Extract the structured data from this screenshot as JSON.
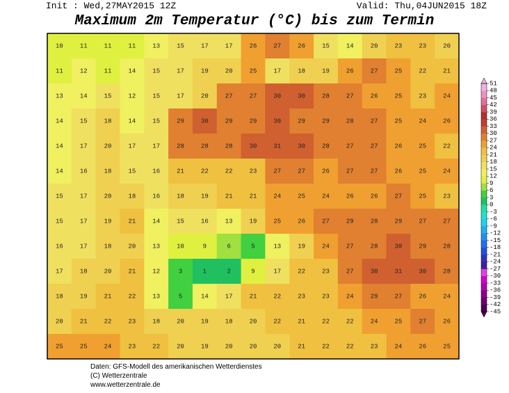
{
  "header": {
    "init": "Init : Wed,27MAY2015 12Z",
    "valid": "Valid: Thu,04JUN2015 18Z",
    "title": "Maximum 2m Temperatur (°C) bis zum Termin"
  },
  "map": {
    "values": [
      [
        10,
        11,
        11,
        11,
        13,
        15,
        17,
        17,
        26,
        27,
        26,
        15,
        14,
        20,
        23,
        23,
        20
      ],
      [
        11,
        12,
        11,
        14,
        15,
        17,
        19,
        20,
        25,
        17,
        18,
        19,
        26,
        27,
        25,
        22,
        21
      ],
      [
        13,
        14,
        15,
        12,
        15,
        17,
        20,
        27,
        27,
        30,
        30,
        28,
        27,
        26,
        25,
        23,
        24
      ],
      [
        14,
        15,
        18,
        14,
        15,
        29,
        30,
        29,
        29,
        30,
        29,
        29,
        28,
        27,
        25,
        24,
        26
      ],
      [
        14,
        17,
        20,
        17,
        17,
        28,
        28,
        28,
        30,
        31,
        30,
        28,
        27,
        27,
        26,
        25,
        22
      ],
      [
        14,
        16,
        18,
        15,
        16,
        21,
        22,
        22,
        23,
        27,
        27,
        26,
        27,
        27,
        26,
        25,
        24
      ],
      [
        15,
        17,
        20,
        18,
        16,
        18,
        19,
        21,
        21,
        24,
        25,
        24,
        26,
        26,
        27,
        25,
        23
      ],
      [
        15,
        17,
        19,
        21,
        14,
        15,
        16,
        13,
        19,
        25,
        26,
        27,
        29,
        28,
        29,
        27,
        27
      ],
      [
        16,
        17,
        18,
        20,
        13,
        10,
        9,
        6,
        5,
        13,
        19,
        24,
        27,
        28,
        30,
        29,
        28
      ],
      [
        17,
        18,
        20,
        21,
        12,
        3,
        1,
        2,
        9,
        17,
        22,
        23,
        27,
        30,
        31,
        30,
        28
      ],
      [
        18,
        19,
        21,
        22,
        13,
        5,
        14,
        17,
        21,
        22,
        23,
        23,
        24,
        29,
        27,
        26,
        24
      ],
      [
        20,
        21,
        22,
        23,
        18,
        20,
        19,
        18,
        20,
        22,
        21,
        22,
        22,
        24,
        25,
        27,
        26
      ],
      [
        25,
        25,
        24,
        23,
        22,
        20,
        19,
        20,
        20,
        20,
        21,
        22,
        22,
        23,
        24,
        26,
        25
      ]
    ]
  },
  "colorbar": {
    "ticks": [
      51,
      48,
      45,
      42,
      39,
      36,
      33,
      30,
      27,
      24,
      21,
      18,
      15,
      12,
      9,
      6,
      3,
      0,
      -3,
      -6,
      -9,
      -12,
      -15,
      -18,
      -21,
      -24,
      -27,
      -30,
      -33,
      -36,
      -39,
      -42,
      -45
    ],
    "colors": [
      "#4b0050",
      "#6a0070",
      "#8a0090",
      "#b000b0",
      "#d000d0",
      "#e040e0",
      "#4020a0",
      "#3030c0",
      "#2050e0",
      "#2070f0",
      "#2090f0",
      "#20b0f0",
      "#20d0f0",
      "#20e0d0",
      "#20e0a0",
      "#20c060",
      "#40d040",
      "#a0e040",
      "#e0f040",
      "#f0f060",
      "#f0e060",
      "#f0d050",
      "#f0c040",
      "#f0a030",
      "#e08030",
      "#d06030",
      "#c04030",
      "#b03030",
      "#d05060",
      "#e070a0",
      "#f090c0",
      "#f0b0e0"
    ]
  },
  "footer": {
    "lines": [
      "Daten: GFS-Modell des amerikanischen Wetterdienstes",
      "(C) Wetterzentrale",
      "www.wetterzentrale.de"
    ]
  }
}
